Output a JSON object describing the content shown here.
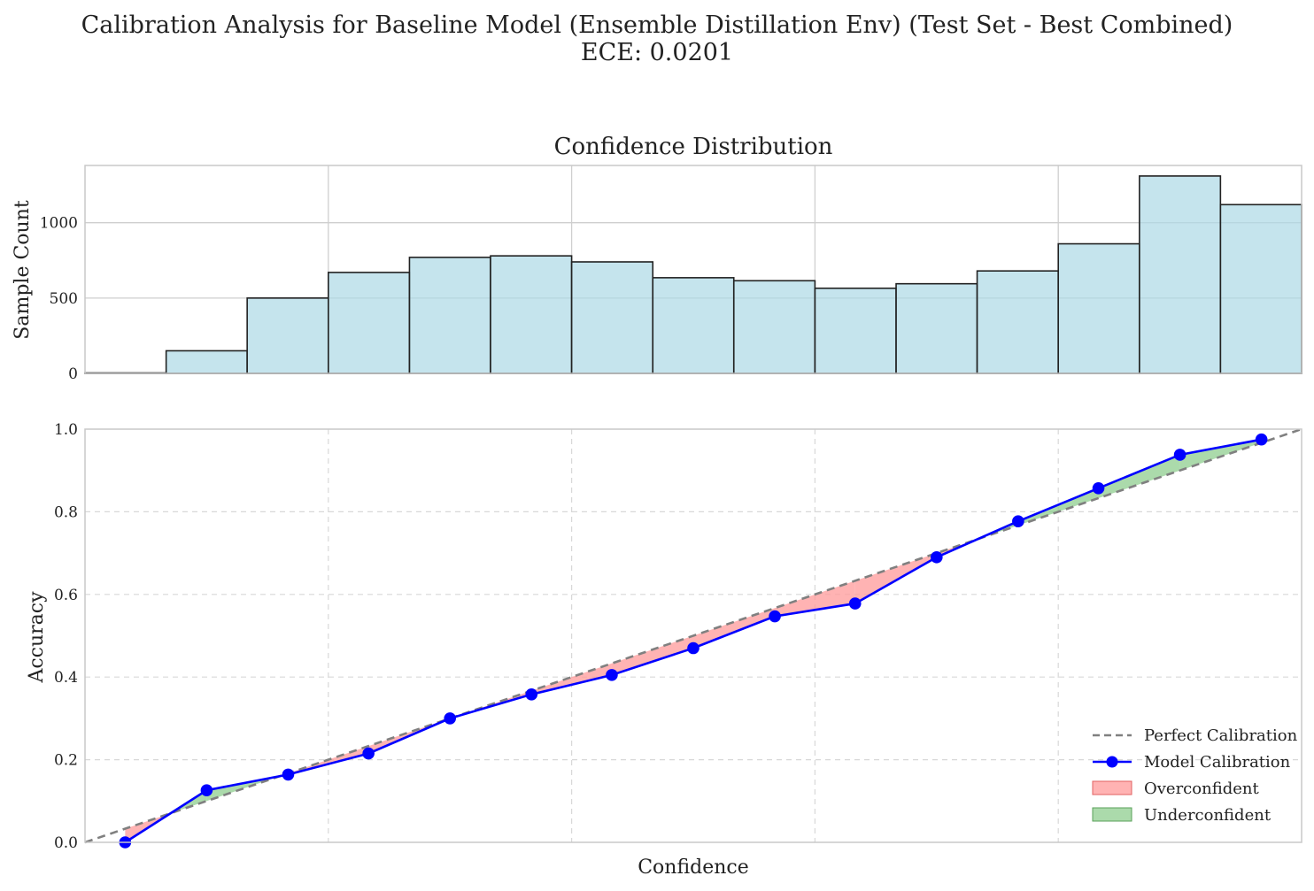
{
  "figure": {
    "title_line1": "Calibration Analysis for Baseline Model (Ensemble Distillation Env) (Test Set - Best Combined)",
    "title_line2": "ECE: 0.0201"
  },
  "chart_data": [
    {
      "type": "bar",
      "title": "Confidence Distribution",
      "xlabel": "",
      "ylabel": "Sample Count",
      "xlim": [
        0,
        1
      ],
      "ylim": [
        0,
        1380
      ],
      "yticks": [
        0,
        500,
        1000
      ],
      "grid": true,
      "bin_edges": [
        0.0,
        0.0667,
        0.1333,
        0.2,
        0.2667,
        0.3333,
        0.4,
        0.4667,
        0.5333,
        0.6,
        0.6667,
        0.7333,
        0.8,
        0.8667,
        0.9333,
        1.0
      ],
      "values": [
        3,
        150,
        500,
        670,
        770,
        780,
        740,
        635,
        615,
        565,
        595,
        680,
        860,
        1310,
        1120
      ],
      "colors": {
        "fill": "#add8e6",
        "edge": "#222222"
      }
    },
    {
      "type": "line",
      "title": "",
      "xlabel": "Confidence",
      "ylabel": "Accuracy",
      "xlim": [
        0,
        1
      ],
      "ylim": [
        0,
        1
      ],
      "yticks": [
        0.0,
        0.2,
        0.4,
        0.6,
        0.8,
        1.0
      ],
      "grid": true,
      "legend_position": "bottom-right",
      "series": [
        {
          "name": "Perfect Calibration",
          "x": [
            0,
            1
          ],
          "y": [
            0,
            1
          ],
          "color": "#808080",
          "style": "dashed"
        },
        {
          "name": "Model Calibration",
          "x": [
            0.033,
            0.1,
            0.167,
            0.233,
            0.3,
            0.367,
            0.433,
            0.5,
            0.567,
            0.633,
            0.7,
            0.767,
            0.833,
            0.9,
            0.967
          ],
          "y": [
            0.0,
            0.126,
            0.164,
            0.215,
            0.3,
            0.358,
            0.405,
            0.47,
            0.547,
            0.578,
            0.69,
            0.777,
            0.857,
            0.938,
            0.975
          ],
          "color": "#0000ff",
          "marker": "circle"
        }
      ],
      "fills": [
        {
          "name": "Overconfident",
          "color": "#ff9999"
        },
        {
          "name": "Underconfident",
          "color": "#8fce8f"
        }
      ]
    }
  ]
}
